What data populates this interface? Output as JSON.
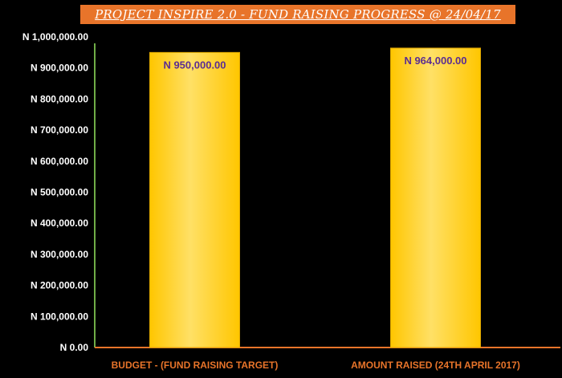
{
  "chart_data": {
    "type": "bar",
    "title": "PROJECT INSPIRE 2.0 - FUND RAISING PROGRESS @ 24/04/17",
    "categories": [
      "BUDGET - (FUND RAISING TARGET)",
      "AMOUNT RAISED (24TH APRIL 2017)"
    ],
    "values": [
      950000,
      964000
    ],
    "data_labels": [
      "N 950,000.00",
      "N 964,000.00"
    ],
    "y_ticks": [
      {
        "value": 0,
        "label": "N 0.00"
      },
      {
        "value": 100000,
        "label": "N 100,000.00"
      },
      {
        "value": 200000,
        "label": "N 200,000.00"
      },
      {
        "value": 300000,
        "label": "N 300,000.00"
      },
      {
        "value": 400000,
        "label": "N 400,000.00"
      },
      {
        "value": 500000,
        "label": "N 500,000.00"
      },
      {
        "value": 600000,
        "label": "N 600,000.00"
      },
      {
        "value": 700000,
        "label": "N 700,000.00"
      },
      {
        "value": 800000,
        "label": "N 800,000.00"
      },
      {
        "value": 900000,
        "label": "N 900,000.00"
      },
      {
        "value": 1000000,
        "label": "N 1,000,000.00"
      }
    ],
    "ylim": [
      0,
      1000000
    ],
    "grid": false,
    "colors": {
      "background": "#000000",
      "bar_fill": "#ffc600",
      "bar_highlight": "#ffe066",
      "title_banner": "#e8742a",
      "title_text": "#ffffff",
      "tick_text": "#ffffff",
      "category_text": "#e8742a",
      "data_label_text": "#5b2d91",
      "y_axis_line": "#70ad47",
      "x_axis_line": "#e8742a"
    }
  }
}
